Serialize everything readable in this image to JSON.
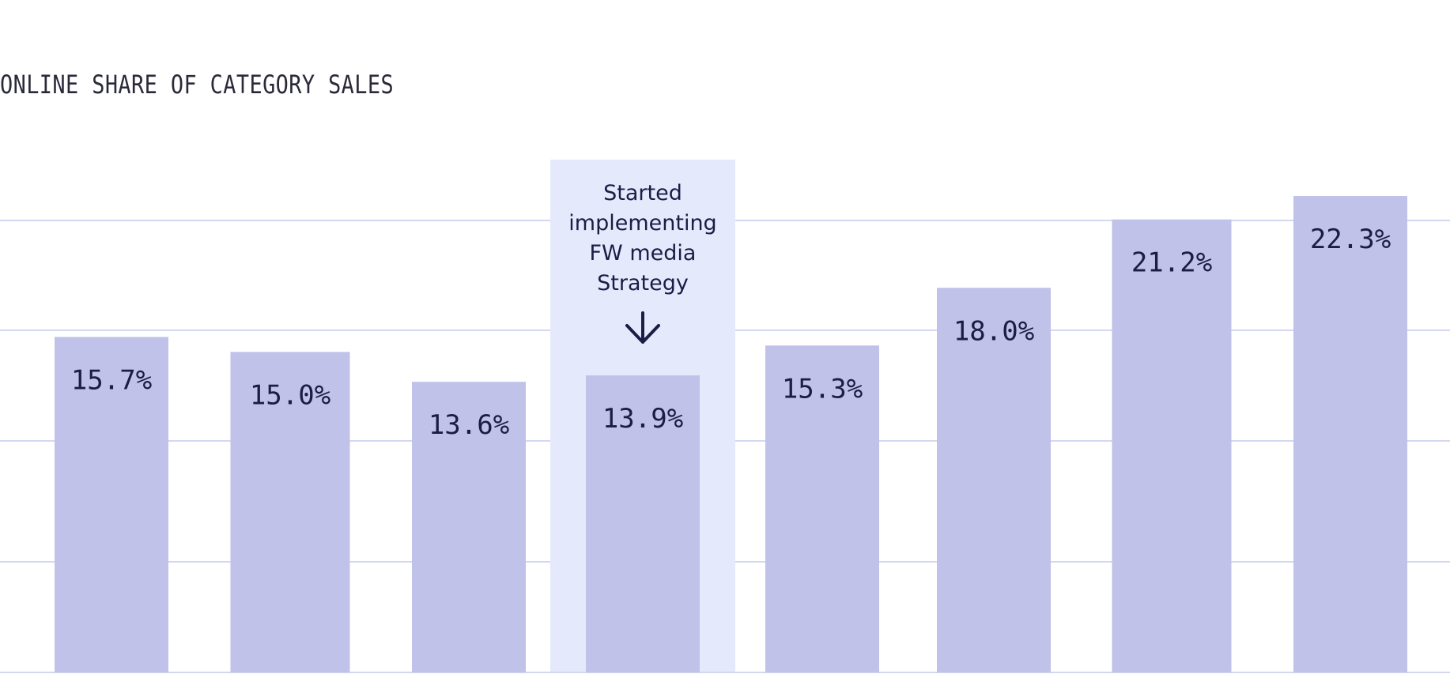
{
  "colors": {
    "bar": "#c0c2e9",
    "highlight": "#e5e9fc",
    "gridline": "#d3d8f0",
    "label": "#1a1d45",
    "title": "#2a2a3a"
  },
  "chart_data": {
    "type": "bar",
    "title": "ONLINE SHARE OF CATEGORY SALES",
    "values": [
      15.7,
      15.0,
      13.6,
      13.9,
      15.3,
      18.0,
      21.2,
      22.3
    ],
    "labels": [
      "15.7%",
      "15.0%",
      "13.6%",
      "13.9%",
      "15.3%",
      "18.0%",
      "21.2%",
      "22.3%"
    ],
    "ylim": [
      0,
      24
    ],
    "grid": true,
    "highlighted_index": 3,
    "annotation": {
      "lines": [
        "Started",
        "implementing",
        "FW media",
        "Strategy"
      ],
      "icon": "arrow-down-icon"
    }
  }
}
